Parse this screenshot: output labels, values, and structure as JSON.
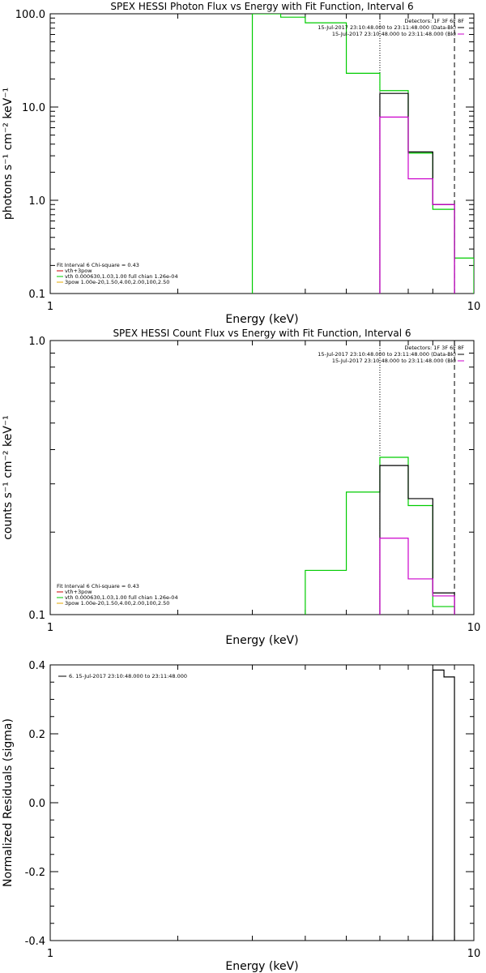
{
  "chart_data": [
    {
      "type": "line",
      "title": "SPEX HESSI Photon Flux vs Energy with Fit Function, Interval 6",
      "xlabel": "Energy (keV)",
      "ylabel": "photons s⁻¹ cm⁻² keV⁻¹",
      "xscale": "log",
      "yscale": "log",
      "xlim": [
        1,
        10
      ],
      "ylim": [
        0.1,
        100
      ],
      "xticks": [
        {
          "v": 1,
          "label": "1"
        },
        {
          "v": 10,
          "label": "10"
        }
      ],
      "yticks": [
        {
          "v": 0.1,
          "label": "0.1"
        },
        {
          "v": 1,
          "label": "1.0"
        },
        {
          "v": 10,
          "label": "10.0"
        },
        {
          "v": 100,
          "label": "100.0"
        }
      ],
      "vlines": [
        {
          "x": 6.0,
          "style": "dotted"
        },
        {
          "x": 9.0,
          "style": "dashed"
        }
      ],
      "legend_top_right": [
        "Detectors: 1F 3F 6F 8F",
        "15-Jul-2017 23:10:48.000 to 23:11:48.000 (Data-Bk)",
        "15-Jul-2017 23:10:48.000 to 23:11:48.000 (Bk)"
      ],
      "legend_top_colors": [
        "#000000",
        "#cc00cc"
      ],
      "legend_bottom_left": [
        "Fit Interval 6   Chi-square = 0.43",
        "vth+3pow",
        "vth 0.000630,1.03,1.00   full chian 1.26e-04",
        "3pow 1.00e-20,1.50,4.00,2.00,100,2.50"
      ],
      "legend_bottom_colors": [
        "#cc0000",
        "#00cc00",
        "#e6a800"
      ],
      "series": [
        {
          "color": "#00cc00",
          "steps": [
            [
              3.0,
              3.5,
              100
            ],
            [
              3.5,
              4.0,
              92
            ],
            [
              4.0,
              5.0,
              80
            ],
            [
              5.0,
              6.0,
              23
            ],
            [
              6.0,
              7.0,
              15
            ],
            [
              7.0,
              8.0,
              3.2
            ],
            [
              8.0,
              9.0,
              0.8
            ],
            [
              9.0,
              10.0,
              0.24
            ]
          ]
        },
        {
          "color": "#000000",
          "steps": [
            [
              6.0,
              7.0,
              14
            ],
            [
              7.0,
              8.0,
              3.3
            ],
            [
              8.0,
              9.0,
              0.9
            ]
          ]
        },
        {
          "color": "#cc00cc",
          "steps": [
            [
              6.0,
              7.0,
              7.8
            ],
            [
              7.0,
              8.0,
              1.7
            ],
            [
              8.0,
              9.0,
              0.9
            ]
          ]
        }
      ]
    },
    {
      "type": "line",
      "title": "SPEX HESSI Count Flux vs Energy with Fit Function, Interval 6",
      "xlabel": "Energy (keV)",
      "ylabel": "counts s⁻¹ cm⁻² keV⁻¹",
      "xscale": "log",
      "yscale": "log",
      "xlim": [
        1,
        10
      ],
      "ylim": [
        0.1,
        1.0
      ],
      "xticks": [
        {
          "v": 1,
          "label": "1"
        },
        {
          "v": 10,
          "label": "10"
        }
      ],
      "yticks": [
        {
          "v": 0.1,
          "label": "0.1"
        },
        {
          "v": 1.0,
          "label": "1.0"
        }
      ],
      "vlines": [
        {
          "x": 6.0,
          "style": "dotted"
        },
        {
          "x": 9.0,
          "style": "dashed"
        }
      ],
      "legend_top_right": [
        "Detectors: 1F 3F 6F 8F",
        "15-Jul-2017 23:10:48.000 to 23:11:48.000 (Data-Bk)",
        "15-Jul-2017 23:10:48.000 to 23:11:48.000 (Bk)"
      ],
      "legend_top_colors": [
        "#000000",
        "#cc00cc"
      ],
      "legend_bottom_left": [
        "Fit Interval 6   Chi-square = 0.43",
        "vth+3pow",
        "vth 0.000630,1.03,1.00   full chian 1.26e-04",
        "3pow 1.00e-20,1.50,4.00,2.00,100,2.50"
      ],
      "legend_bottom_colors": [
        "#cc0000",
        "#00cc00",
        "#e6a800"
      ],
      "series": [
        {
          "color": "#00cc00",
          "steps": [
            [
              4.0,
              5.0,
              0.145
            ],
            [
              5.0,
              6.0,
              0.28
            ],
            [
              6.0,
              7.0,
              0.375
            ],
            [
              7.0,
              8.0,
              0.25
            ],
            [
              8.0,
              9.0,
              0.107
            ]
          ]
        },
        {
          "color": "#000000",
          "steps": [
            [
              6.0,
              7.0,
              0.35
            ],
            [
              7.0,
              8.0,
              0.265
            ],
            [
              8.0,
              9.0,
              0.12
            ]
          ]
        },
        {
          "color": "#cc00cc",
          "steps": [
            [
              6.0,
              7.0,
              0.19
            ],
            [
              7.0,
              8.0,
              0.135
            ],
            [
              8.0,
              9.0,
              0.117
            ]
          ]
        }
      ]
    },
    {
      "type": "line",
      "title": "",
      "xlabel": "Energy (keV)",
      "ylabel": "Normalized Residuals (sigma)",
      "xscale": "log",
      "yscale": "linear",
      "xlim": [
        1,
        10
      ],
      "ylim": [
        -0.4,
        0.4
      ],
      "xticks": [
        {
          "v": 1,
          "label": "1"
        },
        {
          "v": 10,
          "label": "10"
        }
      ],
      "yticks": [
        {
          "v": -0.4,
          "label": "-0.4"
        },
        {
          "v": -0.2,
          "label": "-0.2"
        },
        {
          "v": 0,
          "label": "0.0"
        },
        {
          "v": 0.2,
          "label": "0.2"
        },
        {
          "v": 0.4,
          "label": "0.4"
        }
      ],
      "vlines": [],
      "legend_residual": "6. 15-Jul-2017 23:10:48.000 to 23:11:48.000",
      "series": [
        {
          "color": "#000000",
          "steps": [
            [
              8.0,
              8.5,
              0.385
            ],
            [
              8.5,
              9.0,
              0.365
            ]
          ]
        }
      ]
    }
  ]
}
